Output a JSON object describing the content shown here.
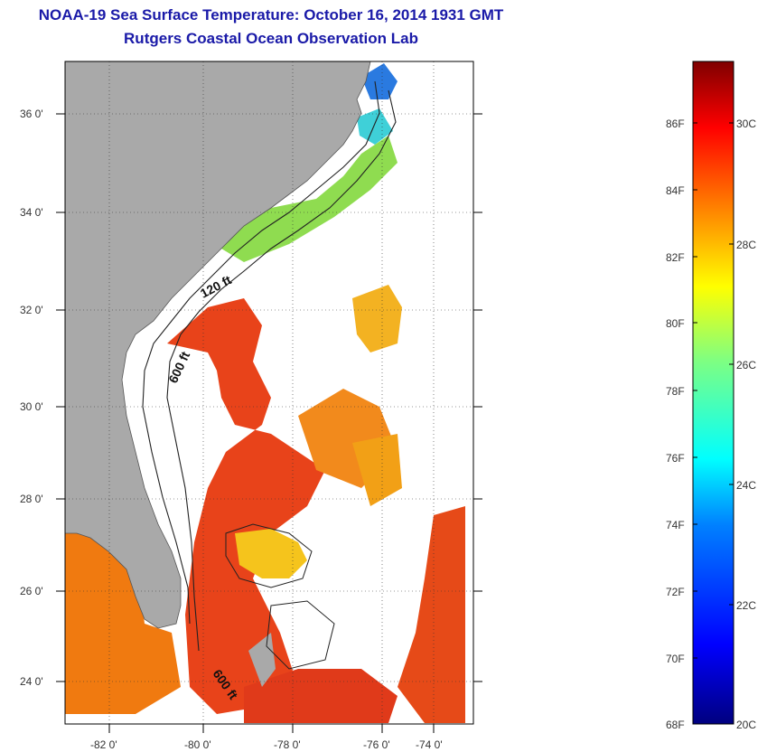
{
  "header": {
    "title": "NOAA-19 Sea Surface Temperature:  October 16, 2014 1931 GMT",
    "subtitle": "Rutgers Coastal Ocean Observation Lab"
  },
  "map": {
    "lat_labels": [
      "36 0'",
      "34 0'",
      "32 0'",
      "30 0'",
      "28 0'",
      "26 0'",
      "24 0'"
    ],
    "lon_labels": [
      "-82 0'",
      "-80 0'",
      "-78 0'",
      "-76 0'",
      "-74 0'"
    ],
    "contour_labels": {
      "c120": "120 ft",
      "c600a": "600 ft",
      "c600b": "600 ft"
    },
    "colors": {
      "land": "#a9a9a9",
      "gulf_stream": "#e8431a",
      "warm": "#f07a10",
      "mid": "#f5c41c",
      "cool": "#8fdc50",
      "cold": "#2a7ae0"
    }
  },
  "colorbar": {
    "f_labels": [
      "86F",
      "84F",
      "82F",
      "80F",
      "78F",
      "76F",
      "74F",
      "72F",
      "70F",
      "68F"
    ],
    "c_labels": [
      "30C",
      "28C",
      "26C",
      "24C",
      "22C",
      "20C"
    ]
  }
}
